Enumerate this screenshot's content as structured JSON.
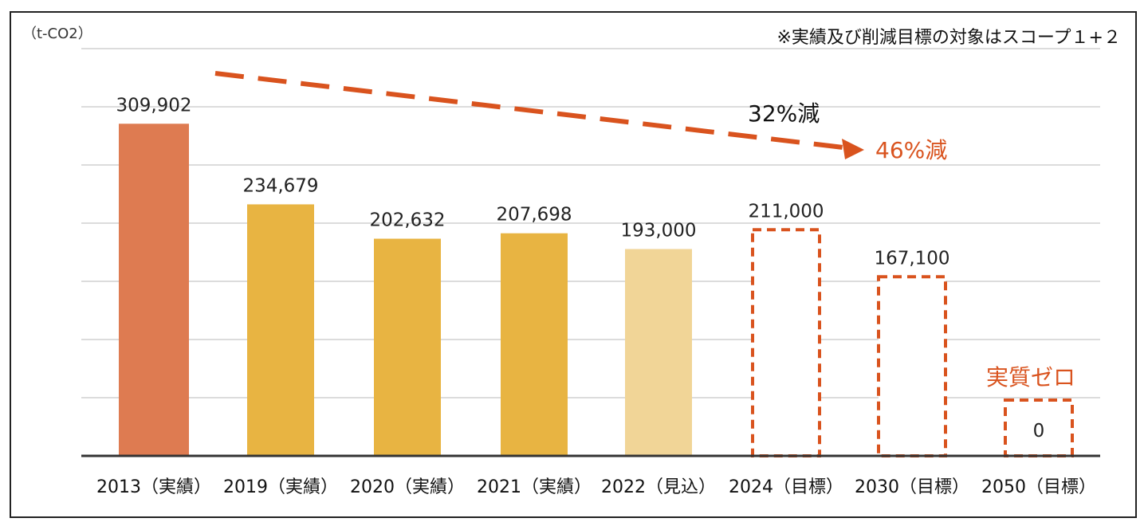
{
  "chart_data": {
    "type": "bar",
    "unit_label": "（t-CO2）",
    "note": "※実績及び削減目標の対象はスコープ１+２",
    "categories": [
      "2013（実績）",
      "2019（実績）",
      "2020（実績）",
      "2021（実績）",
      "2022（見込）",
      "2024（目標）",
      "2030（目標）",
      "2050（目標）"
    ],
    "values": [
      309902,
      234679,
      202632,
      207698,
      193000,
      211000,
      167100,
      0
    ],
    "value_labels": [
      "309,902",
      "234,679",
      "202,632",
      "207,698",
      "193,000",
      "211,000",
      "167,100",
      "0"
    ],
    "bar_styles": [
      "base",
      "actual",
      "actual",
      "actual",
      "forecast",
      "target",
      "target",
      "target"
    ],
    "ylim": [
      0,
      380000
    ],
    "grid": true,
    "annotations": {
      "reduction_2030": "32%減",
      "reduction_2030_alt": "46%減",
      "net_zero": "実質ゼロ"
    },
    "colors": {
      "base": "#de7b51",
      "actual": "#e8b442",
      "forecast": "#f1d597",
      "target_outline": "#d9531e",
      "grid": "#c8c8c8",
      "axis": "#333333",
      "arrow": "#d9531e"
    }
  }
}
